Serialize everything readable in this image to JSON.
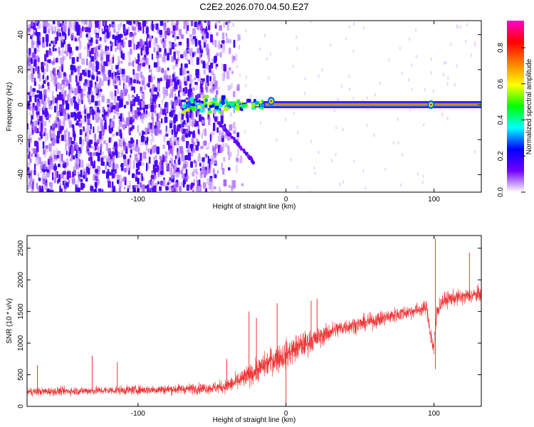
{
  "figure": {
    "title": "C2E2.2026.070.04.50.E27"
  },
  "chart_data": [
    {
      "type": "heatmap",
      "title": "",
      "xlabel": "Height of straight line (km)",
      "ylabel": "Frequency (Hz)",
      "xlim": [
        -175,
        132
      ],
      "ylim": [
        -50,
        48
      ],
      "x_ticks": [
        -100,
        0,
        100
      ],
      "x_tick_labels": [
        "-100",
        "0",
        "100"
      ],
      "y_ticks": [
        -40,
        -20,
        0,
        20,
        40
      ],
      "y_tick_labels": [
        "-40",
        "-20",
        "0",
        "20",
        "40"
      ],
      "colorbar": {
        "label": "Normalized spectral amplitude",
        "range": [
          0,
          0.95
        ],
        "ticks": [
          0,
          0.2,
          0.4,
          0.6,
          0.8
        ],
        "tick_labels": [
          "0.0",
          "0.2",
          "0.4",
          "0.6",
          "0.8"
        ],
        "colors": [
          "#ffffff",
          "#7000ff",
          "#0000ff",
          "#00ffff",
          "#00ff00",
          "#ffff00",
          "#ff7f00",
          "#ff0000",
          "#ff00cc"
        ]
      },
      "features": {
        "noise_region_x": [
          -175,
          -40
        ],
        "noise_fade_x": [
          -60,
          -35
        ],
        "carrier_line": {
          "x": [
            -70,
            132
          ],
          "y": 0
        },
        "descending_branch": [
          [
            -48,
            -8
          ],
          [
            -35,
            -20
          ],
          [
            -22,
            -33
          ]
        ],
        "bright_spots": [
          [
            -10,
            2
          ],
          [
            98,
            0
          ]
        ]
      },
      "grid": false,
      "legend": "none"
    },
    {
      "type": "line",
      "title": "",
      "xlabel": "Height of straight line (km)",
      "ylabel": "SNR (10 * v/v)",
      "xlim": [
        -175,
        132
      ],
      "ylim": [
        0,
        2700
      ],
      "x_ticks": [
        -100,
        0,
        100
      ],
      "x_tick_labels": [
        "-100",
        "0",
        "100"
      ],
      "y_ticks": [
        0,
        500,
        1000,
        1500,
        2000,
        2500
      ],
      "y_tick_labels": [
        "0",
        "500",
        "1000",
        "1500",
        "2000",
        "2500"
      ],
      "series": [
        {
          "color": "#ef3434",
          "x": [
            -175,
            -150,
            -125,
            -100,
            -75,
            -50,
            -40,
            -30,
            -20,
            -10,
            0,
            10,
            20,
            30,
            40,
            50,
            60,
            70,
            80,
            90,
            95,
            98,
            100,
            102,
            105,
            110,
            120,
            132
          ],
          "y": [
            230,
            240,
            250,
            260,
            270,
            290,
            320,
            420,
            560,
            720,
            820,
            960,
            1060,
            1180,
            1260,
            1300,
            1360,
            1420,
            1480,
            1530,
            1560,
            1100,
            900,
            1500,
            1650,
            1700,
            1730,
            1780
          ],
          "spread": [
            120,
            120,
            120,
            130,
            140,
            160,
            200,
            280,
            320,
            380,
            400,
            380,
            300,
            260,
            230,
            220,
            220,
            220,
            210,
            200,
            200,
            300,
            300,
            260,
            220,
            220,
            220,
            220
          ],
          "spikes": [
            [
              -168,
              650
            ],
            [
              -131,
              800
            ],
            [
              -114,
              700
            ],
            [
              -40,
              750
            ],
            [
              -25,
              1500
            ],
            [
              -20,
              1400
            ],
            [
              -6,
              1630
            ],
            [
              0,
              40
            ],
            [
              17,
              1670
            ],
            [
              21,
              1700
            ],
            [
              101,
              2650
            ],
            [
              101,
              590
            ],
            [
              124,
              2430
            ]
          ]
        }
      ],
      "grid": false,
      "legend": "none"
    }
  ]
}
